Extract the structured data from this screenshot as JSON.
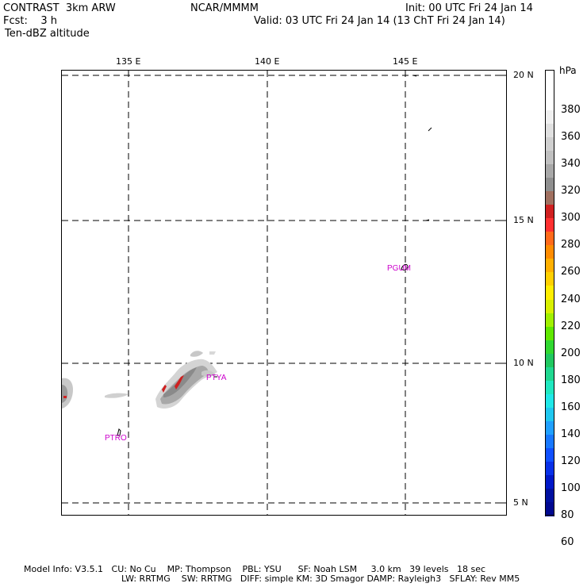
{
  "header": {
    "model": "CONTRAST  3km ARW",
    "center": "NCAR/MMMM",
    "init": "Init: 00 UTC Fri 24 Jan 14",
    "fcst": "Fcst:    3 h",
    "valid": "Valid: 03 UTC Fri 24 Jan 14 (13 ChT Fri 24 Jan 14)",
    "field": "Ten-dBZ altitude"
  },
  "map": {
    "lon_labels": [
      "135 E",
      "140 E",
      "145 E"
    ],
    "lat_labels": [
      "20 N",
      "15 N",
      "10 N",
      "5 N"
    ],
    "stations": [
      "PGUM",
      "PTYA",
      "PTRO"
    ],
    "gridline_style": "dashed"
  },
  "colorbar": {
    "unit": "hPa",
    "labels": [
      "380",
      "360",
      "340",
      "320",
      "300",
      "280",
      "260",
      "240",
      "220",
      "200",
      "180",
      "160",
      "140",
      "120",
      "100",
      "80",
      "60"
    ],
    "colors_top_to_bottom": [
      "#ffffff",
      "#ffffff",
      "#ffffff",
      "#f0f0f0",
      "#e0e0e0",
      "#d0d0d0",
      "#c0c0c0",
      "#a8a8a8",
      "#8f8f8f",
      "#a07060",
      "#d02020",
      "#ff3030",
      "#ff6a1a",
      "#ff8c00",
      "#ffb000",
      "#ffd000",
      "#ffee00",
      "#d8f000",
      "#a0f000",
      "#60e800",
      "#30d830",
      "#20c860",
      "#20d890",
      "#20e8c0",
      "#20e8e8",
      "#20c8f0",
      "#20a0ff",
      "#1878ff",
      "#1050ff",
      "#0830e8",
      "#0018c8",
      "#0010a0",
      "#000890"
    ]
  },
  "footer": {
    "line1": "Model Info: V3.5.1   CU: No Cu    MP: Thompson    PBL: YSU      SF: Noah LSM     3.0 km   39 levels   18 sec",
    "line2": "LW: RRTMG    SW: RRTMG   DIFF: simple KM: 3D Smagor DAMP: Rayleigh3   SFLAY: Rev MM5"
  }
}
